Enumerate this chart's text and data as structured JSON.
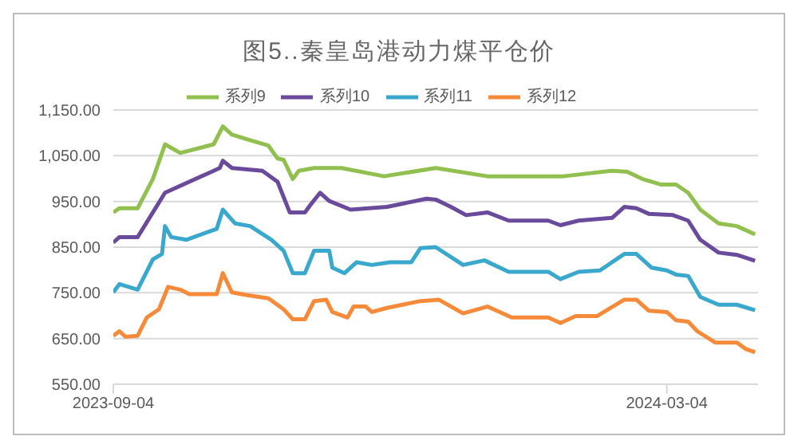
{
  "chart_data": {
    "type": "line",
    "title": "图5..秦皇岛港动力煤平仓价",
    "legend": "top",
    "grid": "y",
    "line_style": "solid",
    "marker": "none",
    "xlim": [
      "2023-09-04",
      "2024-04-03"
    ],
    "xticks": [
      {
        "value": "2023-09-04",
        "label": "2023-09-04"
      },
      {
        "value": "2024-03-04",
        "label": "2024-03-04"
      }
    ],
    "ylim": [
      550,
      1150
    ],
    "yticks": [
      {
        "value": 550,
        "label": "550.00"
      },
      {
        "value": 650,
        "label": "650.00"
      },
      {
        "value": 750,
        "label": "750.00"
      },
      {
        "value": 850,
        "label": "850.00"
      },
      {
        "value": 950,
        "label": "950.00"
      },
      {
        "value": 1050,
        "label": "1,050.00"
      },
      {
        "value": 1150,
        "label": "1,150.00"
      }
    ],
    "series": [
      {
        "name": "系列9",
        "color": "#92c050",
        "x": [
          "2023-09-04",
          "2023-09-06",
          "2023-09-12",
          "2023-09-17",
          "2023-09-21",
          "2023-09-26",
          "2023-10-07",
          "2023-10-10",
          "2023-10-13",
          "2023-10-19",
          "2023-10-25",
          "2023-10-28",
          "2023-10-30",
          "2023-11-02",
          "2023-11-04",
          "2023-11-09",
          "2023-11-18",
          "2023-12-02",
          "2023-12-19",
          "2024-01-05",
          "2024-01-30",
          "2024-02-15",
          "2024-02-20",
          "2024-02-25",
          "2024-03-02",
          "2024-03-07",
          "2024-03-11",
          "2024-03-15",
          "2024-03-21",
          "2024-03-27",
          "2024-04-02"
        ],
        "values": [
          926,
          935,
          935,
          999,
          1075,
          1056,
          1075,
          1114,
          1096,
          1084,
          1072,
          1044,
          1041,
          999,
          1017,
          1023,
          1023,
          1005,
          1023,
          1005,
          1005,
          1017,
          1015,
          999,
          987,
          987,
          969,
          932,
          902,
          896,
          878
        ]
      },
      {
        "name": "系列10",
        "color": "#6a4a9a",
        "x": [
          "2023-09-04",
          "2023-09-06",
          "2023-09-12",
          "2023-09-21",
          "2023-10-09",
          "2023-10-10",
          "2023-10-13",
          "2023-10-23",
          "2023-10-28",
          "2023-11-01",
          "2023-11-06",
          "2023-11-08",
          "2023-11-11",
          "2023-11-14",
          "2023-11-21",
          "2023-12-03",
          "2023-12-16",
          "2023-12-19",
          "2023-12-24",
          "2023-12-29",
          "2024-01-05",
          "2024-01-12",
          "2024-01-25",
          "2024-01-29",
          "2024-02-04",
          "2024-02-15",
          "2024-02-19",
          "2024-02-23",
          "2024-02-27",
          "2024-03-06",
          "2024-03-11",
          "2024-03-15",
          "2024-03-21",
          "2024-03-27",
          "2024-04-02"
        ],
        "values": [
          860,
          872,
          872,
          969,
          1023,
          1039,
          1023,
          1017,
          993,
          926,
          926,
          944,
          969,
          951,
          932,
          938,
          956,
          954,
          938,
          920,
          926,
          908,
          908,
          898,
          908,
          914,
          938,
          935,
          923,
          920,
          908,
          866,
          838,
          833,
          820
        ]
      },
      {
        "name": "系列11",
        "color": "#3aa8cc",
        "x": [
          "2023-09-04",
          "2023-09-06",
          "2023-09-12",
          "2023-09-17",
          "2023-09-20",
          "2023-09-21",
          "2023-09-23",
          "2023-09-28",
          "2023-10-08",
          "2023-10-10",
          "2023-10-14",
          "2023-10-19",
          "2023-10-26",
          "2023-10-30",
          "2023-11-02",
          "2023-11-06",
          "2023-11-09",
          "2023-11-14",
          "2023-11-15",
          "2023-11-19",
          "2023-11-23",
          "2023-11-28",
          "2023-12-04",
          "2023-12-11",
          "2023-12-14",
          "2023-12-19",
          "2023-12-28",
          "2024-01-04",
          "2024-01-12",
          "2024-01-25",
          "2024-01-29",
          "2024-02-04",
          "2024-02-11",
          "2024-02-19",
          "2024-02-23",
          "2024-02-28",
          "2024-03-04",
          "2024-03-07",
          "2024-03-11",
          "2024-03-15",
          "2024-03-21",
          "2024-03-27",
          "2024-04-02"
        ],
        "values": [
          751,
          769,
          757,
          823,
          835,
          896,
          872,
          866,
          890,
          932,
          902,
          896,
          866,
          842,
          793,
          793,
          842,
          842,
          805,
          793,
          817,
          811,
          817,
          817,
          848,
          850,
          811,
          821,
          796,
          796,
          780,
          796,
          799,
          835,
          835,
          805,
          799,
          790,
          787,
          741,
          724,
          724,
          712
        ]
      },
      {
        "name": "系列12",
        "color": "#f58b3a",
        "x": [
          "2023-09-04",
          "2023-09-06",
          "2023-09-08",
          "2023-09-12",
          "2023-09-15",
          "2023-09-19",
          "2023-09-22",
          "2023-09-26",
          "2023-09-29",
          "2023-10-08",
          "2023-10-10",
          "2023-10-13",
          "2023-10-18",
          "2023-10-25",
          "2023-10-30",
          "2023-11-02",
          "2023-11-06",
          "2023-11-09",
          "2023-11-13",
          "2023-11-15",
          "2023-11-20",
          "2023-11-22",
          "2023-11-26",
          "2023-11-28",
          "2023-12-03",
          "2023-12-14",
          "2023-12-20",
          "2023-12-28",
          "2024-01-05",
          "2024-01-13",
          "2024-01-25",
          "2024-01-29",
          "2024-02-03",
          "2024-02-10",
          "2024-02-19",
          "2024-02-23",
          "2024-02-27",
          "2024-03-04",
          "2024-03-07",
          "2024-03-11",
          "2024-03-14",
          "2024-03-20",
          "2024-03-27",
          "2024-03-30",
          "2024-04-02"
        ],
        "values": [
          656,
          666,
          654,
          656,
          696,
          714,
          763,
          757,
          747,
          747,
          793,
          751,
          745,
          738,
          714,
          692,
          692,
          732,
          735,
          708,
          696,
          720,
          720,
          708,
          717,
          732,
          735,
          705,
          720,
          696,
          696,
          684,
          699,
          699,
          735,
          735,
          711,
          708,
          690,
          687,
          666,
          641,
          641,
          627,
          620
        ]
      }
    ]
  }
}
